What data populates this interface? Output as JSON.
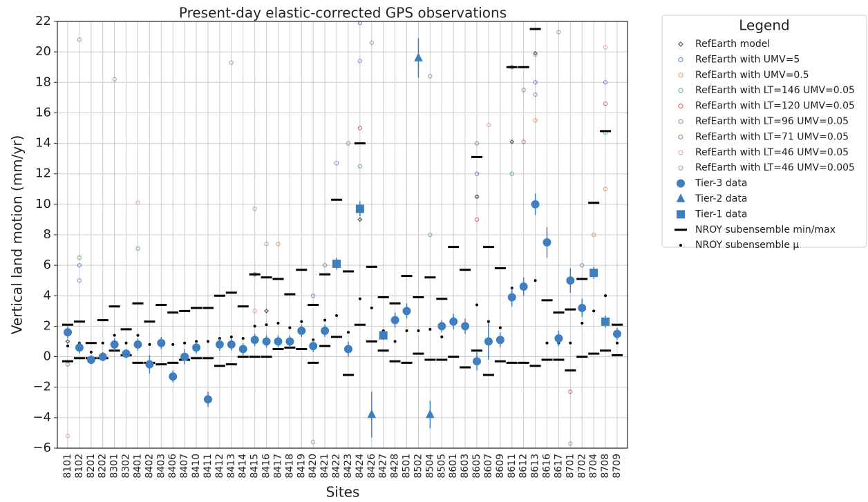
{
  "chart_data": {
    "type": "scatter",
    "title": "Present-day elastic-corrected GPS observations",
    "x_label": "Sites",
    "y_label": "Vertical land motion (mm/yr)",
    "legend_title": "Legend",
    "grid": true,
    "legend_position": "outside right",
    "categories": [
      "8101",
      "8102",
      "8201",
      "8202",
      "8301",
      "8302",
      "8401",
      "8402",
      "8403",
      "8406",
      "8407",
      "8410",
      "8411",
      "8412",
      "8413",
      "8414",
      "8415",
      "8416",
      "8417",
      "8418",
      "8419",
      "8420",
      "8421",
      "8422",
      "8423",
      "8424",
      "8426",
      "8427",
      "8428",
      "8501",
      "8502",
      "8504",
      "8505",
      "8601",
      "8603",
      "8605",
      "8607",
      "8609",
      "8611",
      "8612",
      "8613",
      "8616",
      "8617",
      "8701",
      "8702",
      "8704",
      "8708",
      "8709"
    ],
    "ylim": [
      -6,
      22
    ],
    "yticks": [
      {
        "value": -6,
        "label": "−6"
      },
      {
        "value": -4,
        "label": "−4"
      },
      {
        "value": -2,
        "label": "−2"
      },
      0,
      2,
      4,
      6,
      8,
      10,
      12,
      14,
      16,
      18,
      20,
      22
    ],
    "ensemble": [
      {
        "name": "RefEarth model",
        "color": "#222222",
        "marker": "diamond",
        "x": [
          "8613",
          "8611",
          "8605",
          "8424",
          "8101",
          "8416"
        ],
        "values": [
          19.9,
          14.1,
          10.5,
          9.0,
          1.0,
          3.0
        ]
      },
      {
        "name": "RefEarth with UMV=5",
        "color": "#4c72b0",
        "marker": "circle",
        "x": [
          "8424",
          "8613",
          "8708",
          "8605",
          "8102",
          "8415"
        ],
        "values": [
          21.9,
          18.0,
          18.0,
          12.0,
          6.0,
          5.4
        ]
      },
      {
        "name": "RefEarth with UMV=0.5",
        "color": "#dd8452",
        "marker": "circle",
        "x": [
          "8416",
          "8417",
          "8708",
          "8613",
          "8415",
          "8704"
        ],
        "values": [
          7.4,
          7.4,
          11.0,
          15.5,
          9.7,
          8.0
        ]
      },
      {
        "name": "RefEarth with LT=146 UMV=0.05",
        "color": "#55a868",
        "marker": "circle",
        "x": [
          "8708",
          "8611",
          "8401",
          "8424",
          "8102",
          "8504"
        ],
        "values": [
          14.7,
          12.0,
          7.1,
          12.5,
          6.5,
          8.0
        ]
      },
      {
        "name": "RefEarth with LT=120 UMV=0.05",
        "color": "#c44e52",
        "marker": "circle",
        "x": [
          "8708",
          "8611",
          "8424",
          "8605",
          "8701",
          "8612"
        ],
        "values": [
          16.6,
          19.0,
          15.0,
          9.0,
          -2.3,
          14.1
        ]
      },
      {
        "name": "RefEarth with LT=96 UMV=0.05",
        "color": "#8172b3",
        "marker": "circle",
        "x": [
          "8424",
          "8613",
          "8605",
          "8422",
          "8420",
          "8102"
        ],
        "values": [
          19.4,
          17.2,
          14.0,
          12.7,
          4.0,
          5.0
        ]
      },
      {
        "name": "RefEarth with LT=71 UMV=0.05",
        "color": "#937860",
        "marker": "circle",
        "x": [
          "8612",
          "8423",
          "8605",
          "8421",
          "8101",
          "8702"
        ],
        "values": [
          17.5,
          14.0,
          10.5,
          6.0,
          -0.5,
          6.0
        ]
      },
      {
        "name": "RefEarth with LT=46 UMV=0.05",
        "color": "#da8bc3",
        "marker": "circle",
        "x": [
          "8101",
          "8401",
          "8613",
          "8607",
          "8415",
          "8708"
        ],
        "values": [
          -5.2,
          10.1,
          19.8,
          15.2,
          3.0,
          20.3
        ]
      },
      {
        "name": "RefEarth with LT=46 UMV=0.005",
        "color": "#8c8c8c",
        "marker": "circle",
        "x": [
          "8102",
          "8301",
          "8413",
          "8617",
          "8420",
          "8701",
          "8426",
          "8504"
        ],
        "values": [
          20.8,
          18.2,
          19.3,
          21.3,
          -5.6,
          -5.7,
          20.6,
          18.4
        ]
      }
    ],
    "observations": [
      {
        "name": "Tier-3 data",
        "color": "#3f7fbf",
        "marker": "circle",
        "x": [
          "8101",
          "8102",
          "8201",
          "8202",
          "8301",
          "8302",
          "8401",
          "8402",
          "8403",
          "8406",
          "8407",
          "8410",
          "8411",
          "8412",
          "8413",
          "8414",
          "8415",
          "8416",
          "8417",
          "8418",
          "8419",
          "8420",
          "8421",
          "8423",
          "8428",
          "8501",
          "8505",
          "8601",
          "8603",
          "8605",
          "8607",
          "8609",
          "8611",
          "8612",
          "8613",
          "8616",
          "8617",
          "8701",
          "8702",
          "8709"
        ],
        "values": [
          1.6,
          0.6,
          -0.2,
          0.0,
          0.8,
          0.2,
          0.8,
          -0.5,
          0.9,
          -1.3,
          0.0,
          0.6,
          -2.8,
          0.8,
          0.8,
          0.5,
          1.1,
          1.0,
          1.0,
          1.0,
          1.7,
          0.7,
          1.7,
          0.5,
          2.4,
          3.0,
          2.0,
          2.3,
          2.0,
          -0.3,
          1.0,
          1.1,
          3.9,
          4.6,
          10.0,
          7.5,
          1.2,
          5.0,
          3.2,
          1.5
        ],
        "errors": [
          0.4,
          0.4,
          0.3,
          0.3,
          0.4,
          0.3,
          0.4,
          0.6,
          0.4,
          0.4,
          0.5,
          0.4,
          0.5,
          0.4,
          0.4,
          0.4,
          0.4,
          0.4,
          0.4,
          0.4,
          0.4,
          0.4,
          0.4,
          0.5,
          0.5,
          0.5,
          0.4,
          0.5,
          0.5,
          0.6,
          1.2,
          0.5,
          0.6,
          0.6,
          0.7,
          1.0,
          0.5,
          0.8,
          0.6,
          0.4
        ]
      },
      {
        "name": "Tier-2 data",
        "color": "#3f7fbf",
        "marker": "triangle",
        "x": [
          "8426",
          "8502",
          "8504"
        ],
        "values": [
          -3.8,
          19.6,
          -3.8
        ],
        "errors": [
          1.5,
          1.3,
          0.9
        ]
      },
      {
        "name": "Tier-1 data",
        "color": "#3f7fbf",
        "marker": "square",
        "x": [
          "8422",
          "8424",
          "8427",
          "8704",
          "8708"
        ],
        "values": [
          6.1,
          9.7,
          1.4,
          5.5,
          2.3
        ],
        "errors": [
          0.4,
          0.5,
          0.3,
          0.4,
          0.4
        ]
      }
    ],
    "nroy_range": {
      "name": "NROY subensemble min/max",
      "color": "#000000",
      "max": [
        2.1,
        2.3,
        0.9,
        2.4,
        3.3,
        1.8,
        3.5,
        2.3,
        3.4,
        2.9,
        3.0,
        3.2,
        3.2,
        4.0,
        4.2,
        3.3,
        5.4,
        5.2,
        5.1,
        4.1,
        5.7,
        3.4,
        5.4,
        10.3,
        5.6,
        14.0,
        5.9,
        3.9,
        3.5,
        5.3,
        3.9,
        5.2,
        3.8,
        7.2,
        5.7,
        13.1,
        7.2,
        5.8,
        19.0,
        19.0,
        21.5,
        3.7,
        2.9,
        3.1,
        5.1,
        10.1,
        14.8,
        2.1
      ],
      "min": [
        -0.3,
        -0.1,
        -0.1,
        -0.1,
        0.4,
        0.1,
        -0.4,
        -0.4,
        -0.5,
        -0.4,
        -0.2,
        -0.1,
        -0.1,
        -0.6,
        -0.5,
        0.0,
        0.0,
        0.0,
        0.5,
        0.6,
        0.5,
        -0.4,
        0.7,
        1.3,
        -1.2,
        2.1,
        1.0,
        0.4,
        -0.3,
        -0.4,
        0.2,
        -0.2,
        -0.2,
        0.0,
        -0.7,
        0.4,
        -1.2,
        -0.3,
        -0.4,
        -0.4,
        -0.6,
        -0.2,
        -0.2,
        -0.9,
        0.0,
        0.2,
        0.4,
        0.1
      ]
    },
    "nroy_mean": {
      "name": "NROY subensemble μ",
      "color": "#000000",
      "values": [
        0.7,
        0.9,
        0.3,
        0.9,
        1.4,
        0.9,
        1.4,
        0.8,
        1.0,
        0.8,
        0.9,
        1.0,
        1.0,
        1.2,
        1.3,
        1.2,
        2.0,
        2.1,
        2.2,
        1.9,
        2.3,
        1.1,
        2.4,
        2.7,
        1.6,
        3.8,
        3.2,
        1.7,
        1.0,
        1.7,
        1.7,
        1.8,
        1.3,
        2.5,
        1.9,
        3.4,
        2.3,
        1.9,
        4.5,
        4.6,
        5.0,
        0.9,
        0.9,
        0.9,
        2.2,
        3.0,
        4.0,
        0.9
      ]
    }
  }
}
